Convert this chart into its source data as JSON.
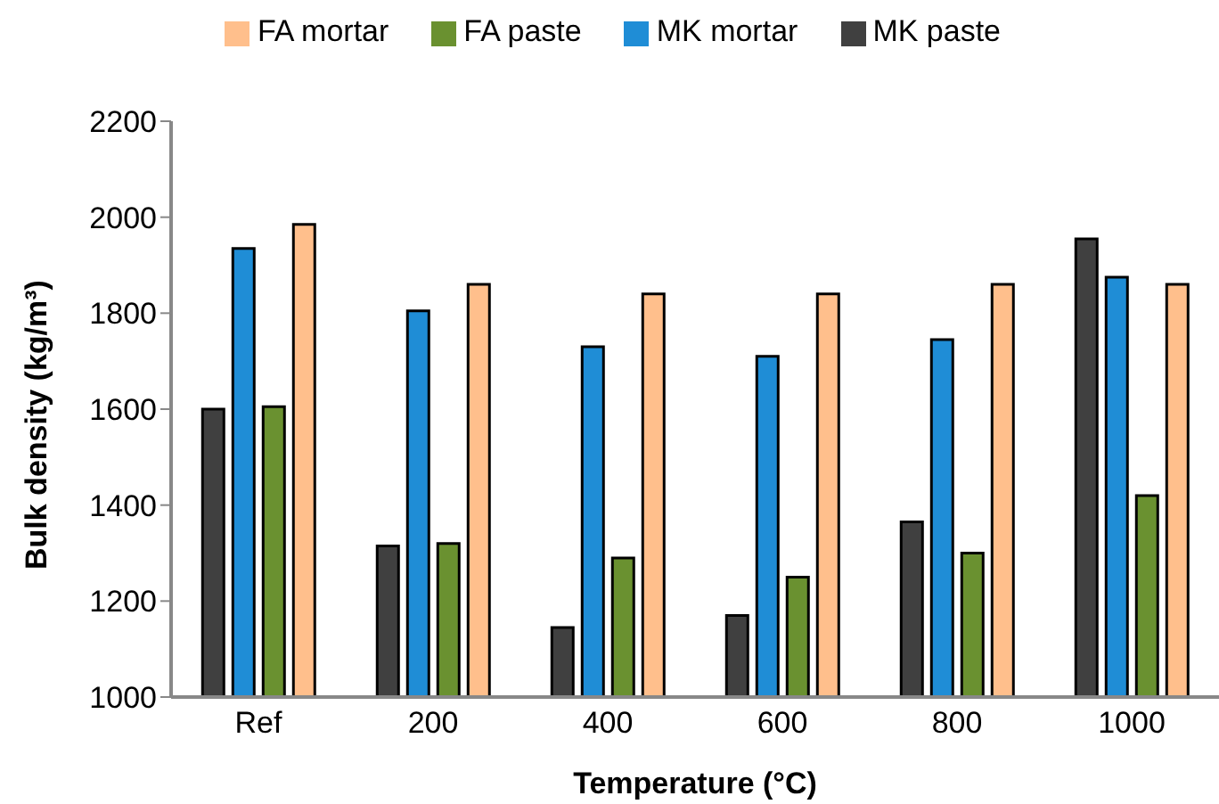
{
  "chart_data": {
    "type": "bar",
    "xlabel": "Temperature (°C)",
    "ylabel": "Bulk density (kg/m³)",
    "categories": [
      "Ref",
      "200",
      "400",
      "600",
      "800",
      "1000"
    ],
    "series": [
      {
        "name": "MK paste",
        "color": "#404040",
        "values": [
          1600,
          1315,
          1145,
          1170,
          1365,
          1955
        ]
      },
      {
        "name": "MK mortar",
        "color": "#1f8dd6",
        "values": [
          1935,
          1805,
          1730,
          1710,
          1745,
          1875
        ]
      },
      {
        "name": "FA paste",
        "color": "#6a9130",
        "values": [
          1605,
          1320,
          1290,
          1250,
          1300,
          1420
        ]
      },
      {
        "name": "FA mortar",
        "color": "#ffbf8c",
        "values": [
          1985,
          1860,
          1840,
          1840,
          1860,
          1860
        ]
      }
    ],
    "ylim": [
      1000,
      2200
    ],
    "yticks": [
      1000,
      1200,
      1400,
      1600,
      1800,
      2000,
      2200
    ],
    "grid": false,
    "legend": "top"
  }
}
